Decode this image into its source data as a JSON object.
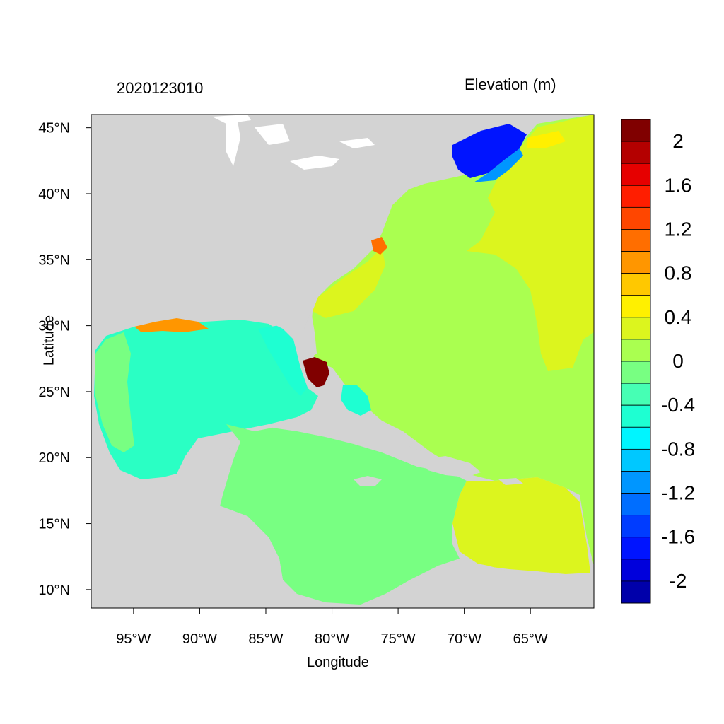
{
  "titles": {
    "left": "2020123010",
    "right": "Elevation (m)"
  },
  "axes": {
    "xlabel": "Longitude",
    "ylabel": "Latitude",
    "xlim": [
      -98.2,
      -60.2
    ],
    "ylim": [
      8.6,
      46.0
    ],
    "xticks": [
      {
        "value": -95,
        "label": "95°W"
      },
      {
        "value": -90,
        "label": "90°W"
      },
      {
        "value": -85,
        "label": "85°W"
      },
      {
        "value": -80,
        "label": "80°W"
      },
      {
        "value": -75,
        "label": "75°W"
      },
      {
        "value": -70,
        "label": "70°W"
      },
      {
        "value": -65,
        "label": "65°W"
      }
    ],
    "yticks": [
      {
        "value": 45,
        "label": "45°N"
      },
      {
        "value": 40,
        "label": "40°N"
      },
      {
        "value": 35,
        "label": "35°N"
      },
      {
        "value": 30,
        "label": "30°N"
      },
      {
        "value": 25,
        "label": "25°N"
      },
      {
        "value": 20,
        "label": "20°N"
      },
      {
        "value": 15,
        "label": "15°N"
      },
      {
        "value": 10,
        "label": "10°N"
      }
    ]
  },
  "colorbar": {
    "bins": [
      {
        "upper": 2.2,
        "color": "#800000"
      },
      {
        "upper": 2.0,
        "color": "#b40000"
      },
      {
        "upper": 1.8,
        "color": "#e60000"
      },
      {
        "upper": 1.6,
        "color": "#ff1e00"
      },
      {
        "upper": 1.4,
        "color": "#ff4600"
      },
      {
        "upper": 1.2,
        "color": "#ff6e00"
      },
      {
        "upper": 1.0,
        "color": "#ff9600"
      },
      {
        "upper": 0.8,
        "color": "#ffc800"
      },
      {
        "upper": 0.6,
        "color": "#fff000"
      },
      {
        "upper": 0.4,
        "color": "#dcf51e"
      },
      {
        "upper": 0.2,
        "color": "#aaff50"
      },
      {
        "upper": 0.0,
        "color": "#78ff82"
      },
      {
        "upper": -0.2,
        "color": "#46ffb4"
      },
      {
        "upper": -0.4,
        "color": "#1effd2"
      },
      {
        "upper": -0.6,
        "color": "#00f5ff"
      },
      {
        "upper": -0.8,
        "color": "#00c8ff"
      },
      {
        "upper": -1.0,
        "color": "#0096ff"
      },
      {
        "upper": -1.2,
        "color": "#006eff"
      },
      {
        "upper": -1.4,
        "color": "#003cff"
      },
      {
        "upper": -1.6,
        "color": "#0014ff"
      },
      {
        "upper": -1.8,
        "color": "#0000dc"
      },
      {
        "upper": -2.0,
        "color": "#0000aa"
      }
    ],
    "labels": [
      "2",
      "1.6",
      "1.2",
      "0.8",
      "0.4",
      "0",
      "-0.4",
      "-0.8",
      "-1.2",
      "-1.6",
      "-2"
    ]
  },
  "map_colors": {
    "land": "#d3d3d3",
    "open_ocean": "#aaff50",
    "gulf": "#2affc4",
    "caribbean": "#78ff82",
    "north_atlantic": "#dcf51e",
    "gulf_of_maine": "#0014ff",
    "south_florida": "#800000",
    "lakes": "#ffffff"
  }
}
